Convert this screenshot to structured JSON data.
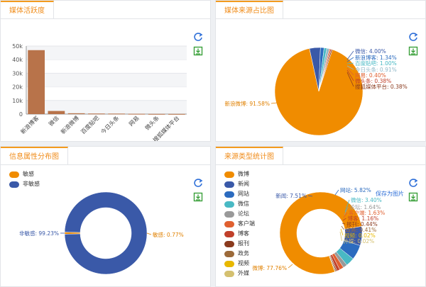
{
  "panels": {
    "activity": {
      "title": "媒体活跃度"
    },
    "source": {
      "title": "媒体来源占比图"
    },
    "attr": {
      "title": "信息属性分布图"
    },
    "type": {
      "title": "来源类型统计图",
      "save_label": "保存为图片"
    }
  },
  "colors": {
    "accent": "#f39a1e",
    "orange": "#f08c00",
    "blue": "#3a59a8",
    "bar": "#b8734a"
  },
  "chart_data": [
    {
      "type": "bar",
      "title": "媒体活跃度",
      "categories": [
        "新浪博客",
        "微信",
        "新浪微博",
        "百度贴吧",
        "今日头条",
        "网易",
        "微头条",
        "搜狐媒体平台"
      ],
      "values": [
        47000,
        2300,
        600,
        400,
        350,
        200,
        120,
        100
      ],
      "ylim": [
        0,
        50000
      ],
      "yticks": [
        "0",
        "10k",
        "20k",
        "30k",
        "40k",
        "50k"
      ],
      "grid": true
    },
    {
      "type": "pie",
      "title": "媒体来源占比图",
      "slices": [
        {
          "name": "新浪微博",
          "label": "新浪微博: 91.58%",
          "value": 91.58,
          "color": "#f08c00"
        },
        {
          "name": "微信",
          "label": "微信: 4.00%",
          "value": 4.0,
          "color": "#3a59a8"
        },
        {
          "name": "新浪博客",
          "label": "新浪博客: 1.34%",
          "value": 1.34,
          "color": "#2b6bbf"
        },
        {
          "name": "百度贴吧",
          "label": "百度贴吧: 1.00%",
          "value": 1.0,
          "color": "#49b9c4"
        },
        {
          "name": "今日头条",
          "label": "今日头条: 0.91%",
          "value": 0.91,
          "color": "#8fb8c8"
        },
        {
          "name": "网易",
          "label": "网易: 0.40%",
          "value": 0.4,
          "color": "#e06030"
        },
        {
          "name": "微头条",
          "label": "微头条: 0.38%",
          "value": 0.38,
          "color": "#c0402a"
        },
        {
          "name": "搜狐媒体平台",
          "label": "搜狐媒体平台: 0.38%",
          "value": 0.38,
          "color": "#8a3a1e"
        }
      ]
    },
    {
      "type": "pie",
      "title": "信息属性分布图",
      "donut": true,
      "legend": [
        "敏感",
        "非敏感"
      ],
      "slices": [
        {
          "name": "非敏感",
          "label": "非敏感: 99.23%",
          "value": 99.23,
          "color": "#3a59a8"
        },
        {
          "name": "敏感",
          "label": "敏感: 0.77%",
          "value": 0.77,
          "color": "#f08c00"
        }
      ]
    },
    {
      "type": "pie",
      "title": "来源类型统计图",
      "donut": true,
      "legend": [
        "微博",
        "新闻",
        "网站",
        "微信",
        "论坛",
        "客户端",
        "博客",
        "报刊",
        "政务",
        "视频",
        "外媒"
      ],
      "slices": [
        {
          "name": "微博",
          "label": "微博: 77.76%",
          "value": 77.76,
          "color": "#f08c00"
        },
        {
          "name": "新闻",
          "label": "新闻: 7.51%",
          "value": 7.51,
          "color": "#3a59a8"
        },
        {
          "name": "网站",
          "label": "网站: 5.82%",
          "value": 5.82,
          "color": "#2b6bbf"
        },
        {
          "name": "微信",
          "label": "微信: 3.40%",
          "value": 3.4,
          "color": "#49b9c4"
        },
        {
          "name": "论坛",
          "label": "论坛: 1.64%",
          "value": 1.64,
          "color": "#999999"
        },
        {
          "name": "客户端",
          "label": "客户端: 1.63%",
          "value": 1.63,
          "color": "#e06030"
        },
        {
          "name": "博客",
          "label": "博客: 1.16%",
          "value": 1.16,
          "color": "#c0402a"
        },
        {
          "name": "报刊",
          "label": "报刊: 0.44%",
          "value": 0.44,
          "color": "#8a3a1e"
        },
        {
          "name": "政务",
          "label": "政务: 0.41%",
          "value": 0.41,
          "color": "#9c6a3a"
        },
        {
          "name": "视频",
          "label": "视频: 0.02%",
          "value": 0.02,
          "color": "#e8b800"
        },
        {
          "name": "外媒",
          "label": "外媒: 0.02%",
          "value": 0.02,
          "color": "#d4c070"
        }
      ]
    }
  ]
}
